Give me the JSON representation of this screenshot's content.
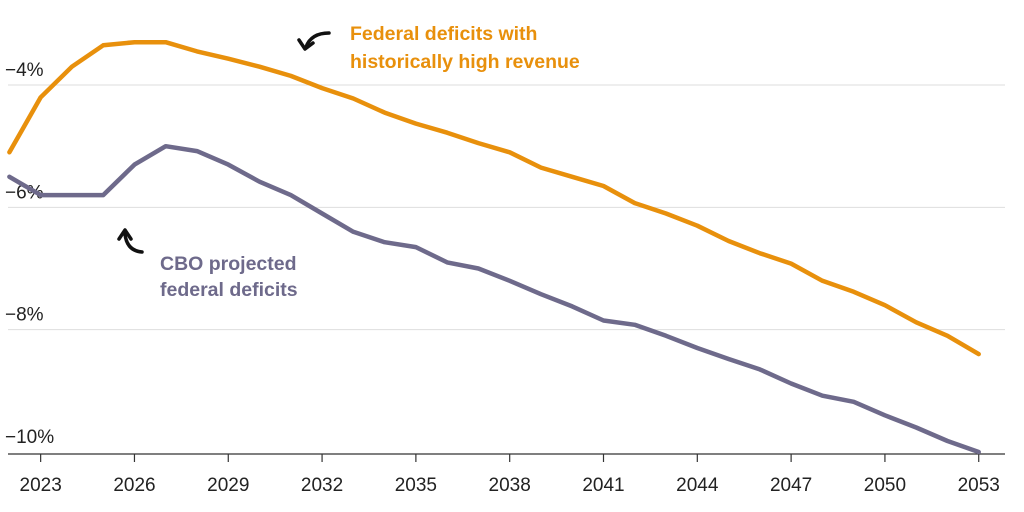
{
  "chart_data": {
    "type": "line",
    "title": "",
    "xlabel": "",
    "ylabel": "",
    "x": [
      2022,
      2023,
      2024,
      2025,
      2026,
      2027,
      2028,
      2029,
      2030,
      2031,
      2032,
      2033,
      2034,
      2035,
      2036,
      2037,
      2038,
      2039,
      2040,
      2041,
      2042,
      2043,
      2044,
      2045,
      2046,
      2047,
      2048,
      2049,
      2050,
      2051,
      2052,
      2053
    ],
    "xlim": [
      2021.7,
      2054.0
    ],
    "ylim": [
      -10.0,
      -3.1
    ],
    "x_ticks": [
      2023,
      2026,
      2029,
      2032,
      2035,
      2038,
      2041,
      2044,
      2047,
      2050,
      2053
    ],
    "x_tick_labels": [
      "2023",
      "2026",
      "2029",
      "2032",
      "2035",
      "2038",
      "2041",
      "2044",
      "2047",
      "2050",
      "2053"
    ],
    "y_ticks": [
      -4,
      -6,
      -8,
      -10
    ],
    "y_tick_labels": [
      "−4%",
      "−6%",
      "−8%",
      "−10%"
    ],
    "grid": true,
    "series": [
      {
        "name": "Federal deficits with historically high revenue",
        "color": "#e8900c",
        "values": [
          -5.1,
          -4.2,
          -3.7,
          -3.35,
          -3.3,
          -3.3,
          -3.45,
          -3.57,
          -3.7,
          -3.85,
          -4.05,
          -4.22,
          -4.45,
          -4.63,
          -4.78,
          -4.95,
          -5.1,
          -5.35,
          -5.5,
          -5.65,
          -5.93,
          -6.1,
          -6.3,
          -6.55,
          -6.75,
          -6.92,
          -7.2,
          -7.38,
          -7.6,
          -7.88,
          -8.1,
          -8.4
        ]
      },
      {
        "name": "CBO projected federal deficits",
        "color": "#6e6a8b",
        "values": [
          -5.5,
          -5.8,
          -5.8,
          -5.8,
          -5.3,
          -5.0,
          -5.08,
          -5.3,
          -5.58,
          -5.8,
          -6.1,
          -6.4,
          -6.57,
          -6.65,
          -6.9,
          -7.0,
          -7.2,
          -7.42,
          -7.62,
          -7.85,
          -7.92,
          -8.1,
          -8.3,
          -8.48,
          -8.65,
          -8.88,
          -9.08,
          -9.18,
          -9.4,
          -9.6,
          -9.82,
          -10.0
        ]
      }
    ],
    "annotations": [
      {
        "line1": "Federal deficits with",
        "line2": "historically high revenue",
        "color": "#e8900c"
      },
      {
        "line1": "CBO projected",
        "line2": "federal deficits",
        "color": "#6e6a8b"
      }
    ]
  }
}
